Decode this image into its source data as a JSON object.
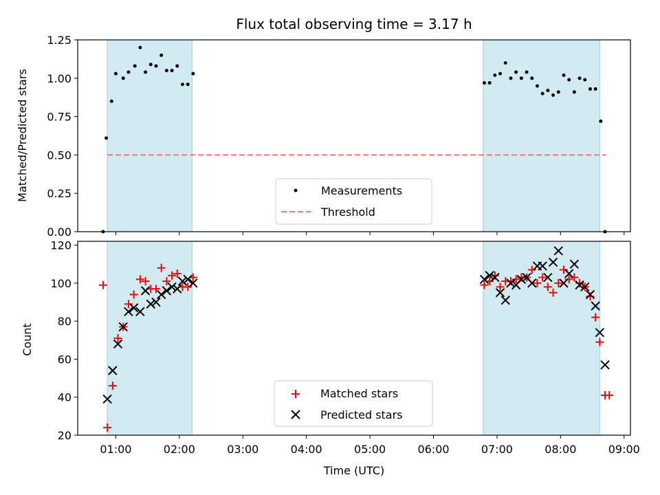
{
  "chart_data": [
    {
      "type": "scatter",
      "title": "Flux total observing time = 3.17 h",
      "xlabel": "",
      "ylabel": "Matched/Predicted stars",
      "xlim": [
        "00:24",
        "09:06"
      ],
      "ylim": [
        0,
        1.25
      ],
      "yticks": [
        "0.00",
        "0.25",
        "0.50",
        "0.75",
        "1.00",
        "1.25"
      ],
      "legend_position": "lower center",
      "shaded_intervals": [
        [
          "00:52",
          "02:12"
        ],
        [
          "06:47",
          "08:37"
        ]
      ],
      "shade_color": "#add8e6",
      "series": [
        {
          "name": "Measurements",
          "marker": "dot",
          "color": "#000000",
          "points": [
            [
              "00:48",
              0.0
            ],
            [
              "00:51",
              0.61
            ],
            [
              "00:56",
              0.85
            ],
            [
              "01:00",
              1.03
            ],
            [
              "01:07",
              1.0
            ],
            [
              "01:12",
              1.04
            ],
            [
              "01:18",
              1.08
            ],
            [
              "01:23",
              1.2
            ],
            [
              "01:28",
              1.04
            ],
            [
              "01:33",
              1.09
            ],
            [
              "01:38",
              1.08
            ],
            [
              "01:43",
              1.15
            ],
            [
              "01:48",
              1.05
            ],
            [
              "01:53",
              1.05
            ],
            [
              "01:58",
              1.08
            ],
            [
              "02:03",
              0.96
            ],
            [
              "02:08",
              0.96
            ],
            [
              "02:13",
              1.03
            ],
            [
              "06:48",
              0.97
            ],
            [
              "06:53",
              0.97
            ],
            [
              "06:58",
              1.02
            ],
            [
              "07:03",
              1.03
            ],
            [
              "07:08",
              1.1
            ],
            [
              "07:13",
              1.0
            ],
            [
              "07:18",
              1.04
            ],
            [
              "07:23",
              1.0
            ],
            [
              "07:28",
              1.04
            ],
            [
              "07:33",
              1.0
            ],
            [
              "07:38",
              0.95
            ],
            [
              "07:43",
              0.9
            ],
            [
              "07:48",
              0.92
            ],
            [
              "07:53",
              0.89
            ],
            [
              "07:58",
              0.91
            ],
            [
              "08:03",
              1.02
            ],
            [
              "08:08",
              0.99
            ],
            [
              "08:13",
              0.91
            ],
            [
              "08:18",
              1.0
            ],
            [
              "08:23",
              0.99
            ],
            [
              "08:28",
              0.93
            ],
            [
              "08:33",
              0.93
            ],
            [
              "08:38",
              0.72
            ],
            [
              "08:42",
              0.0
            ]
          ]
        },
        {
          "name": "Threshold",
          "marker": "dashed-line",
          "color": "#ff7070",
          "points": [
            [
              "00:52",
              0.5
            ],
            [
              "08:43",
              0.5
            ]
          ]
        }
      ]
    },
    {
      "type": "scatter",
      "title": "",
      "xlabel": "Time (UTC)",
      "ylabel": "Count",
      "xlim": [
        "00:24",
        "09:06"
      ],
      "ylim": [
        20,
        122
      ],
      "xticks": [
        "01:00",
        "02:00",
        "03:00",
        "04:00",
        "05:00",
        "06:00",
        "07:00",
        "08:00",
        "09:00"
      ],
      "yticks": [
        "20",
        "40",
        "60",
        "80",
        "100",
        "120"
      ],
      "legend_position": "lower center",
      "shaded_intervals": [
        [
          "00:52",
          "02:12"
        ],
        [
          "06:47",
          "08:37"
        ]
      ],
      "shade_color": "#add8e6",
      "series": [
        {
          "name": "Matched stars",
          "marker": "plus",
          "color": "#ff0000",
          "points": [
            [
              "00:48",
              99
            ],
            [
              "00:52",
              24
            ],
            [
              "00:57",
              46
            ],
            [
              "01:02",
              71
            ],
            [
              "01:07",
              77
            ],
            [
              "01:12",
              89
            ],
            [
              "01:17",
              94
            ],
            [
              "01:23",
              102
            ],
            [
              "01:28",
              101
            ],
            [
              "01:33",
              97
            ],
            [
              "01:38",
              97
            ],
            [
              "01:43",
              108
            ],
            [
              "01:48",
              101
            ],
            [
              "01:53",
              104
            ],
            [
              "01:58",
              105
            ],
            [
              "02:03",
              98
            ],
            [
              "02:08",
              98
            ],
            [
              "02:13",
              103
            ],
            [
              "06:48",
              99
            ],
            [
              "06:53",
              101
            ],
            [
              "06:58",
              104
            ],
            [
              "07:03",
              98
            ],
            [
              "07:08",
              101
            ],
            [
              "07:13",
              101
            ],
            [
              "07:18",
              102
            ],
            [
              "07:23",
              103
            ],
            [
              "07:28",
              103
            ],
            [
              "07:33",
              107
            ],
            [
              "07:38",
              100
            ],
            [
              "07:43",
              103
            ],
            [
              "07:48",
              98
            ],
            [
              "07:53",
              95
            ],
            [
              "07:58",
              100
            ],
            [
              "08:03",
              107
            ],
            [
              "08:08",
              102
            ],
            [
              "08:13",
              103
            ],
            [
              "08:18",
              100
            ],
            [
              "08:23",
              98
            ],
            [
              "08:28",
              93
            ],
            [
              "08:33",
              82
            ],
            [
              "08:37",
              69
            ],
            [
              "08:42",
              41
            ],
            [
              "08:46",
              41
            ]
          ]
        },
        {
          "name": "Predicted stars",
          "marker": "x",
          "color": "#000000",
          "points": [
            [
              "00:52",
              39
            ],
            [
              "00:57",
              54
            ],
            [
              "01:02",
              68
            ],
            [
              "01:07",
              77
            ],
            [
              "01:12",
              85
            ],
            [
              "01:17",
              87
            ],
            [
              "01:23",
              85
            ],
            [
              "01:28",
              96
            ],
            [
              "01:33",
              89
            ],
            [
              "01:38",
              90
            ],
            [
              "01:43",
              94
            ],
            [
              "01:48",
              96
            ],
            [
              "01:53",
              98
            ],
            [
              "01:58",
              97
            ],
            [
              "02:03",
              101
            ],
            [
              "02:08",
              102
            ],
            [
              "02:13",
              100
            ],
            [
              "06:48",
              102
            ],
            [
              "06:53",
              104
            ],
            [
              "06:58",
              103
            ],
            [
              "07:03",
              95
            ],
            [
              "07:08",
              91
            ],
            [
              "07:13",
              100
            ],
            [
              "07:18",
              99
            ],
            [
              "07:23",
              102
            ],
            [
              "07:28",
              103
            ],
            [
              "07:33",
              100
            ],
            [
              "07:38",
              109
            ],
            [
              "07:43",
              109
            ],
            [
              "07:48",
              103
            ],
            [
              "07:53",
              111
            ],
            [
              "07:58",
              117
            ],
            [
              "08:03",
              100
            ],
            [
              "08:08",
              105
            ],
            [
              "08:13",
              110
            ],
            [
              "08:18",
              99
            ],
            [
              "08:23",
              98
            ],
            [
              "08:28",
              94
            ],
            [
              "08:33",
              88
            ],
            [
              "08:37",
              74
            ],
            [
              "08:42",
              57
            ]
          ]
        }
      ]
    }
  ]
}
